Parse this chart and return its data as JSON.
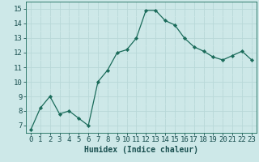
{
  "x": [
    0,
    1,
    2,
    3,
    4,
    5,
    6,
    7,
    8,
    9,
    10,
    11,
    12,
    13,
    14,
    15,
    16,
    17,
    18,
    19,
    20,
    21,
    22,
    23
  ],
  "y": [
    6.7,
    8.2,
    9.0,
    7.8,
    8.0,
    7.5,
    7.0,
    10.0,
    10.8,
    12.0,
    12.2,
    13.0,
    14.9,
    14.9,
    14.2,
    13.9,
    13.0,
    12.4,
    12.1,
    11.7,
    11.5,
    11.8,
    12.1,
    11.5
  ],
  "line_color": "#1a6b5a",
  "marker": "D",
  "marker_size": 2.2,
  "bg_color": "#cde8e8",
  "grid_major_color": "#b8d8d8",
  "grid_minor_color": "#d0e8e8",
  "axis_color": "#1a6b5a",
  "tick_color": "#1a5050",
  "xlabel": "Humidex (Indice chaleur)",
  "ylabel": "",
  "title": "",
  "xlim": [
    -0.5,
    23.5
  ],
  "ylim": [
    6.5,
    15.5
  ],
  "yticks": [
    7,
    8,
    9,
    10,
    11,
    12,
    13,
    14,
    15
  ],
  "xticks": [
    0,
    1,
    2,
    3,
    4,
    5,
    6,
    7,
    8,
    9,
    10,
    11,
    12,
    13,
    14,
    15,
    16,
    17,
    18,
    19,
    20,
    21,
    22,
    23
  ],
  "xlabel_fontsize": 7,
  "tick_fontsize": 6.5
}
